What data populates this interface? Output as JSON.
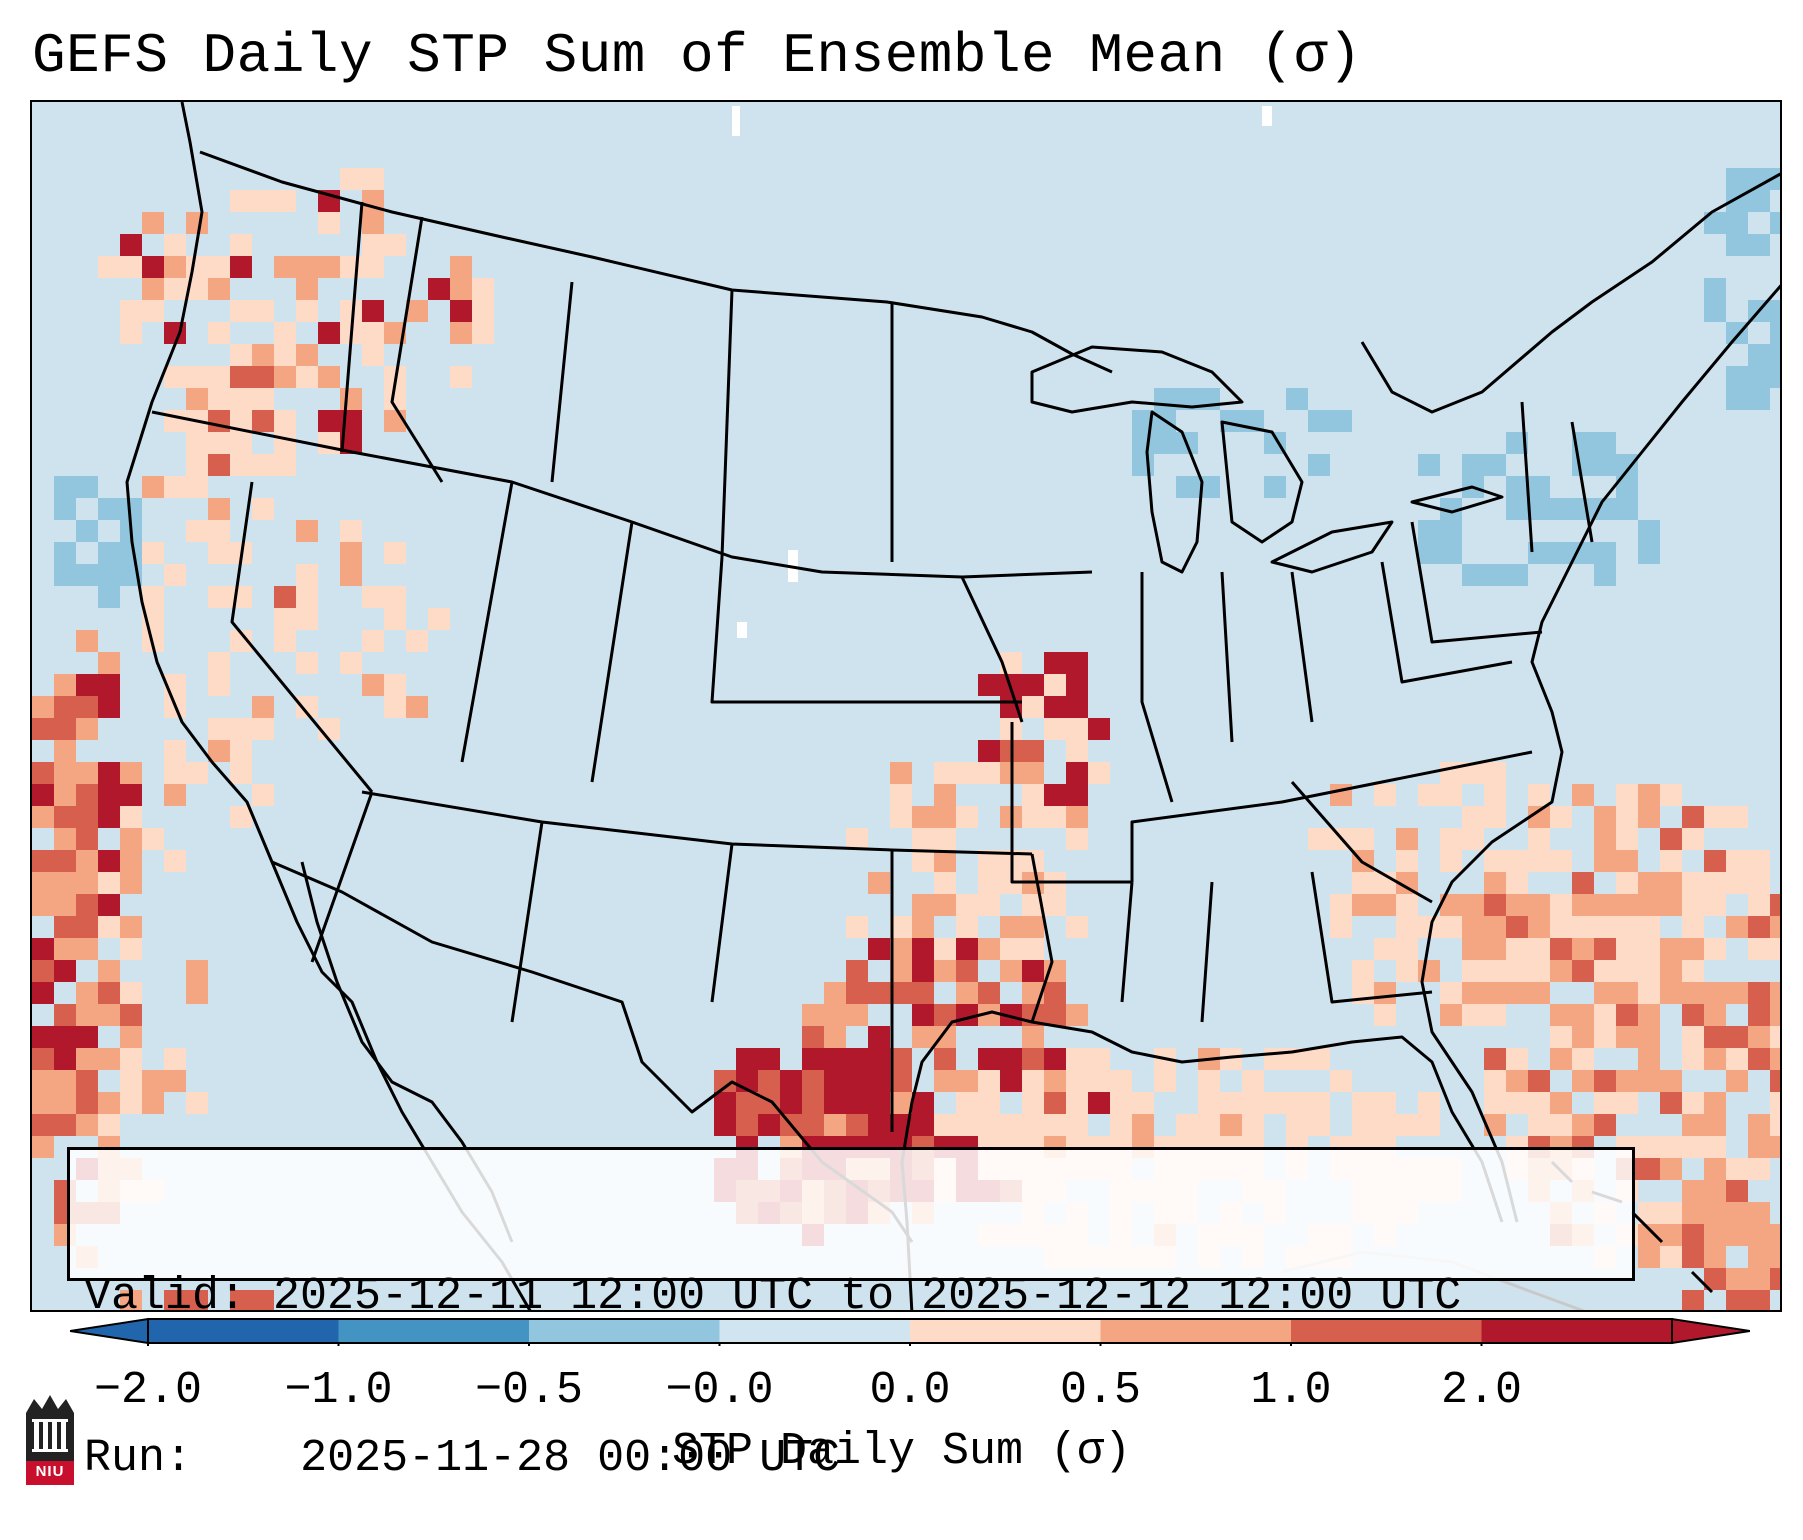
{
  "title": "GEFS Daily STP Sum of Ensemble Mean (σ)",
  "info": {
    "valid_label": "Valid:",
    "valid_value": "2025-12-11 12:00 UTC to 2025-12-12 12:00 UTC",
    "run_label": "Run:",
    "run_value": "2025-11-28 00:00 UTC"
  },
  "colorbar": {
    "label": "STP Daily Sum (σ)",
    "ticks": [
      "−2.0",
      "−1.0",
      "−0.5",
      "−0.0",
      "0.0",
      "0.5",
      "1.0",
      "2.0"
    ],
    "colors": [
      "#2166ac",
      "#4393c3",
      "#92c5de",
      "#d1e5f0",
      "#fddbc7",
      "#f4a582",
      "#d6604d",
      "#b2182b"
    ],
    "extend": "both"
  },
  "map": {
    "background_color": "#cfe3ef",
    "region": "Continental United States, northern Mexico, Gulf of Mexico, western Atlantic"
  },
  "logo": {
    "text": "NIU",
    "icon": "niu-logo-icon"
  }
}
